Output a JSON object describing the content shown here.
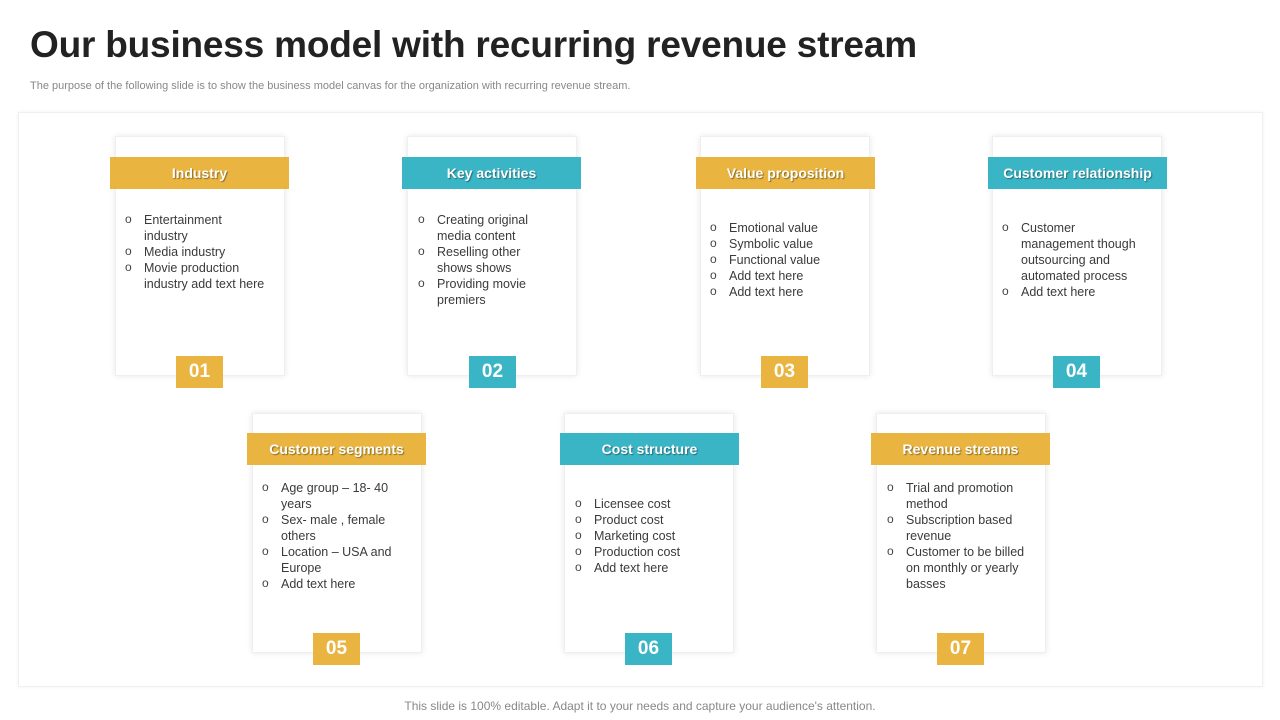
{
  "title": "Our business model with recurring revenue stream",
  "subtitle": "The purpose of the following slide is to show the business model canvas for the organization with recurring revenue stream.",
  "colors": {
    "gold": "#e9b43f",
    "teal": "#3ab5c6"
  },
  "cards": [
    {
      "title": "Industry",
      "number": "01",
      "items": [
        "Entertainment industry",
        "Media industry",
        "Movie production industry add text here"
      ]
    },
    {
      "title": "Key activities",
      "number": "02",
      "items": [
        "Creating original media content",
        "Reselling other shows shows",
        "Providing movie premiers"
      ]
    },
    {
      "title": "Value proposition",
      "number": "03",
      "items": [
        "Emotional value",
        "Symbolic value",
        "Functional value",
        "Add text here",
        "Add text here"
      ]
    },
    {
      "title": "Customer relationship",
      "number": "04",
      "items": [
        "Customer management though outsourcing and automated process",
        "Add text here"
      ]
    },
    {
      "title": "Customer segments",
      "number": "05",
      "items": [
        "Age group – 18- 40 years",
        "Sex- male , female others",
        "Location – USA and Europe",
        "Add text here"
      ]
    },
    {
      "title": "Cost structure",
      "number": "06",
      "items": [
        "Licensee cost",
        "Product cost",
        "Marketing cost",
        "Production cost",
        "Add text here"
      ]
    },
    {
      "title": "Revenue streams",
      "number": "07",
      "items": [
        "Trial and promotion method",
        "Subscription based revenue",
        "Customer to be billed on monthly or yearly basses"
      ]
    }
  ],
  "footer": "This slide is 100% editable. Adapt it to your needs and capture your audience's attention."
}
